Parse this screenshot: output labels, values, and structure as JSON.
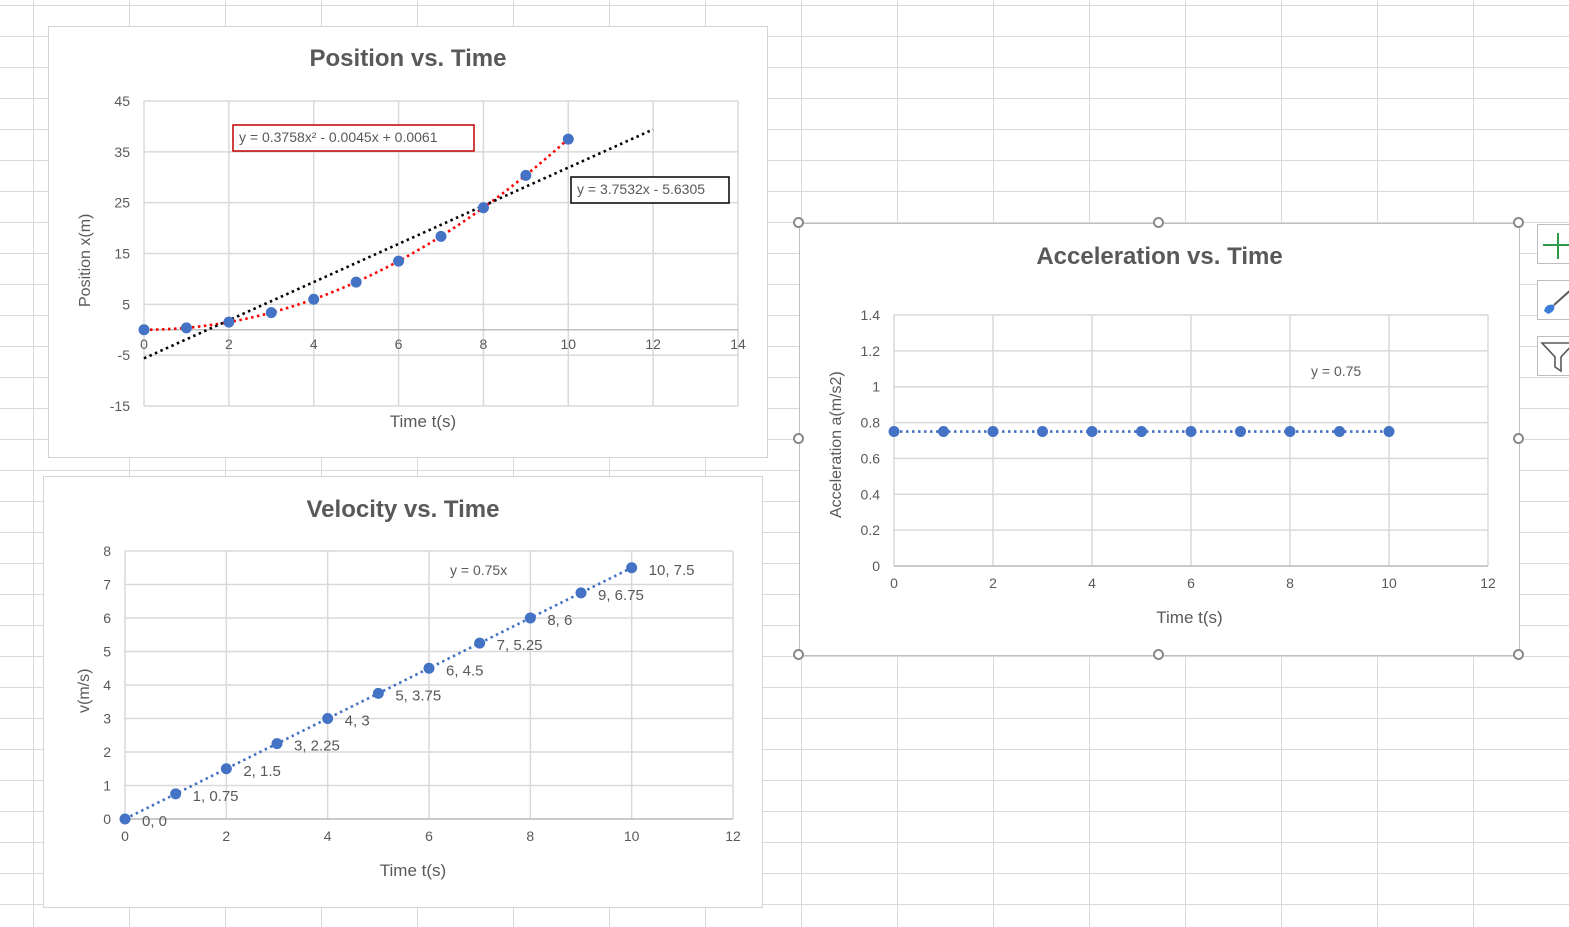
{
  "charts": {
    "position": {
      "title": "Position vs. Time",
      "xlabel": "Time t(s)",
      "ylabel": "Position x(m)",
      "chart_data": {
        "type": "scatter",
        "title": "Position vs. Time",
        "xlabel": "Time t(s)",
        "ylabel": "Position x(m)",
        "xlim": [
          0,
          14
        ],
        "ylim": [
          -15,
          45
        ],
        "xticks": [
          0,
          2,
          4,
          6,
          8,
          10,
          12,
          14
        ],
        "yticks": [
          -15,
          -5,
          5,
          15,
          25,
          35,
          45
        ],
        "grid": true,
        "series": [
          {
            "x": [
              0,
              1,
              2,
              3,
              4,
              5,
              6,
              7,
              8,
              9,
              10
            ],
            "y": [
              0,
              0.375,
              1.5,
              3.375,
              6,
              9.375,
              13.5,
              18.375,
              24,
              30.375,
              37.5
            ],
            "color": "#4472c4"
          }
        ],
        "trendlines": [
          {
            "kind": "polynomial",
            "equation": "y = 0.3758x² - 0.0045x + 0.0061",
            "coefficients": [
              0.3758,
              -0.0045,
              0.0061
            ],
            "x_range": [
              0,
              10
            ],
            "color": "#ff0000",
            "label_border": "#c00000"
          },
          {
            "kind": "linear",
            "equation": "y = 3.7532x - 5.6305",
            "coefficients": [
              3.7532,
              -5.6305
            ],
            "x_range": [
              0,
              12
            ],
            "color": "#000000",
            "label_border": "#000000"
          }
        ]
      }
    },
    "velocity": {
      "title": "Velocity vs. Time",
      "xlabel": "Time t(s)",
      "ylabel": "v(m/s)",
      "chart_data": {
        "type": "scatter",
        "title": "Velocity vs. Time",
        "xlabel": "Time t(s)",
        "ylabel": "v(m/s)",
        "xlim": [
          0,
          12
        ],
        "ylim": [
          0,
          8
        ],
        "xticks": [
          0,
          2,
          4,
          6,
          8,
          10,
          12
        ],
        "yticks": [
          0,
          1,
          2,
          3,
          4,
          5,
          6,
          7,
          8
        ],
        "grid": true,
        "series": [
          {
            "x": [
              0,
              1,
              2,
              3,
              4,
              5,
              6,
              7,
              8,
              9,
              10
            ],
            "y": [
              0,
              0.75,
              1.5,
              2.25,
              3,
              3.75,
              4.5,
              5.25,
              6,
              6.75,
              7.5
            ],
            "labels": [
              "0, 0",
              "1, 0.75",
              "2, 1.5",
              "3, 2.25",
              "4, 3",
              "5, 3.75",
              "6, 4.5",
              "7, 5.25",
              "8, 6",
              "9, 6.75",
              "10, 7.5"
            ],
            "color": "#4472c4"
          }
        ],
        "trendlines": [
          {
            "kind": "linear",
            "equation": "y = 0.75x",
            "coefficients": [
              0.75,
              0
            ],
            "x_range": [
              0,
              10
            ],
            "color": "#4472c4"
          }
        ]
      }
    },
    "acceleration": {
      "title": "Acceleration vs. Time",
      "xlabel": "Time t(s)",
      "ylabel": "Acceleration a(m/s2)",
      "chart_data": {
        "type": "scatter",
        "title": "Acceleration vs. Time",
        "xlabel": "Time t(s)",
        "ylabel": "Acceleration a(m/s2)",
        "xlim": [
          0,
          12
        ],
        "ylim": [
          0,
          1.4
        ],
        "xticks": [
          0,
          2,
          4,
          6,
          8,
          10,
          12
        ],
        "yticks": [
          0,
          0.2,
          0.4,
          0.6,
          0.8,
          1,
          1.2,
          1.4
        ],
        "grid": true,
        "series": [
          {
            "x": [
              0,
              1,
              2,
              3,
              4,
              5,
              6,
              7,
              8,
              9,
              10
            ],
            "y": [
              0.75,
              0.75,
              0.75,
              0.75,
              0.75,
              0.75,
              0.75,
              0.75,
              0.75,
              0.75,
              0.75
            ],
            "color": "#4472c4"
          }
        ],
        "trendlines": [
          {
            "kind": "linear",
            "equation": "y = 0.75",
            "coefficients": [
              0,
              0.75
            ],
            "x_range": [
              0,
              10
            ],
            "color": "#4472c4"
          }
        ]
      }
    }
  },
  "side_buttons": [
    {
      "icon": "plus-icon",
      "color": "#2e9a4a"
    },
    {
      "icon": "brush-icon",
      "color": "#3b7dd8"
    },
    {
      "icon": "filter-icon",
      "color": "#595959"
    }
  ]
}
